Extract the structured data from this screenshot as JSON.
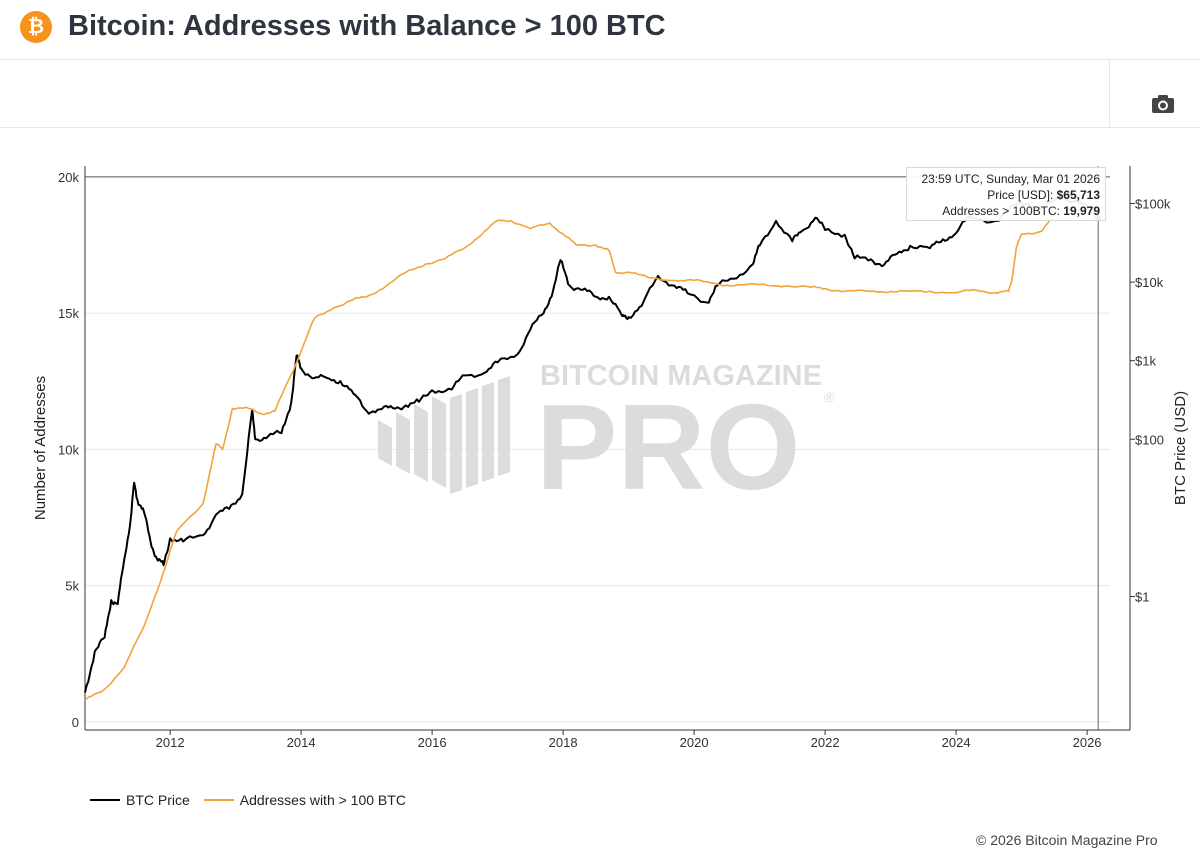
{
  "header": {
    "title": "Bitcoin: Addresses with Balance > 100 BTC",
    "logo_glyph": "₿",
    "logo_color": "#f7931a"
  },
  "toolbar": {
    "camera_icon": "camera-icon"
  },
  "watermark": {
    "line1": "BITCOIN MAGAZINE",
    "line2": "PRO",
    "registered": "®"
  },
  "tooltip": {
    "timestamp": "23:59 UTC, Sunday, Mar 01 2026",
    "price_label": "Price [USD]:",
    "price_value": "$65,713",
    "addresses_label": "Addresses > 100BTC:",
    "addresses_value": "19,979"
  },
  "legend": {
    "btc_price": "BTC Price",
    "addresses": "Addresses with > 100 BTC"
  },
  "footer": {
    "copyright": "© 2026 Bitcoin Magazine Pro"
  },
  "colors": {
    "btc_price": "#000000",
    "addresses": "#f2a33a",
    "grid": "#e6e6e6",
    "axis": "#333333",
    "watermark": "#d9d9d9"
  },
  "chart_data": {
    "type": "line",
    "title": "Bitcoin: Addresses with Balance > 100 BTC",
    "xlabel": "",
    "ylabel": "Number of Addresses",
    "y2label": "BTC Price (USD)",
    "xlim": [
      2010.7,
      2026.35
    ],
    "ylim": [
      -300,
      20400
    ],
    "y2_scale": "log",
    "y2lim": [
      0.02,
      300000
    ],
    "x_ticks": [
      2012,
      2014,
      2016,
      2018,
      2020,
      2022,
      2024,
      2026
    ],
    "x_tick_labels": [
      "2012",
      "2014",
      "2016",
      "2018",
      "2020",
      "2022",
      "2024",
      "2026"
    ],
    "y_ticks": [
      0,
      5000,
      10000,
      15000,
      20000
    ],
    "y_tick_labels": [
      "0",
      "5k",
      "10k",
      "15k",
      "20k"
    ],
    "y2_ticks": [
      1,
      100,
      1000,
      10000,
      100000
    ],
    "y2_tick_labels": [
      "$1",
      "$100",
      "$1k",
      "$10k",
      "$100k"
    ],
    "hover_x": 2026.17,
    "legend_position": "bottom-left",
    "series": [
      {
        "name": "BTC Price",
        "axis": "y2",
        "points": [
          [
            2010.7,
            0.06
          ],
          [
            2010.85,
            0.2
          ],
          [
            2011.0,
            0.3
          ],
          [
            2011.1,
            0.9
          ],
          [
            2011.2,
            0.8
          ],
          [
            2011.3,
            3
          ],
          [
            2011.4,
            10
          ],
          [
            2011.45,
            28
          ],
          [
            2011.5,
            17
          ],
          [
            2011.6,
            12
          ],
          [
            2011.7,
            5
          ],
          [
            2011.8,
            3
          ],
          [
            2011.9,
            2.5
          ],
          [
            2012.0,
            5.5
          ],
          [
            2012.2,
            5
          ],
          [
            2012.5,
            6
          ],
          [
            2012.7,
            11
          ],
          [
            2012.9,
            13
          ],
          [
            2013.1,
            20
          ],
          [
            2013.25,
            230
          ],
          [
            2013.3,
            100
          ],
          [
            2013.5,
            110
          ],
          [
            2013.7,
            120
          ],
          [
            2013.85,
            300
          ],
          [
            2013.93,
            1150
          ],
          [
            2014.0,
            800
          ],
          [
            2014.2,
            600
          ],
          [
            2014.4,
            600
          ],
          [
            2014.6,
            550
          ],
          [
            2014.8,
            380
          ],
          [
            2015.0,
            230
          ],
          [
            2015.2,
            240
          ],
          [
            2015.4,
            250
          ],
          [
            2015.6,
            270
          ],
          [
            2015.8,
            300
          ],
          [
            2016.0,
            420
          ],
          [
            2016.3,
            430
          ],
          [
            2016.5,
            650
          ],
          [
            2016.8,
            700
          ],
          [
            2017.0,
            950
          ],
          [
            2017.3,
            1200
          ],
          [
            2017.5,
            2500
          ],
          [
            2017.7,
            4000
          ],
          [
            2017.85,
            8000
          ],
          [
            2017.96,
            19000
          ],
          [
            2018.1,
            9000
          ],
          [
            2018.3,
            8000
          ],
          [
            2018.5,
            6500
          ],
          [
            2018.7,
            6500
          ],
          [
            2018.9,
            3700
          ],
          [
            2019.0,
            3600
          ],
          [
            2019.2,
            5000
          ],
          [
            2019.45,
            12000
          ],
          [
            2019.7,
            9000
          ],
          [
            2019.9,
            7200
          ],
          [
            2020.2,
            5500
          ],
          [
            2020.35,
            9000
          ],
          [
            2020.6,
            11000
          ],
          [
            2020.9,
            17000
          ],
          [
            2021.0,
            29000
          ],
          [
            2021.25,
            60000
          ],
          [
            2021.5,
            33000
          ],
          [
            2021.65,
            45000
          ],
          [
            2021.85,
            66000
          ],
          [
            2022.0,
            46000
          ],
          [
            2022.3,
            40000
          ],
          [
            2022.45,
            20000
          ],
          [
            2022.7,
            19500
          ],
          [
            2022.9,
            16500
          ],
          [
            2023.1,
            23000
          ],
          [
            2023.3,
            29000
          ],
          [
            2023.6,
            27000
          ],
          [
            2023.8,
            35000
          ],
          [
            2024.0,
            42000
          ],
          [
            2024.2,
            68000
          ],
          [
            2024.6,
            60000
          ],
          [
            2024.9,
            95000
          ],
          [
            2025.1,
            100000
          ],
          [
            2025.3,
            85000
          ],
          [
            2025.6,
            115000
          ],
          [
            2025.85,
            110000
          ],
          [
            2026.0,
            88000
          ],
          [
            2026.17,
            65713
          ]
        ]
      },
      {
        "name": "Addresses with > 100 BTC",
        "axis": "y",
        "points": [
          [
            2010.7,
            800
          ],
          [
            2011.0,
            1200
          ],
          [
            2011.3,
            2000
          ],
          [
            2011.6,
            3500
          ],
          [
            2011.9,
            5500
          ],
          [
            2012.1,
            7000
          ],
          [
            2012.5,
            8000
          ],
          [
            2012.7,
            10200
          ],
          [
            2012.8,
            10000
          ],
          [
            2012.95,
            11500
          ],
          [
            2013.2,
            11500
          ],
          [
            2013.4,
            11300
          ],
          [
            2013.6,
            11400
          ],
          [
            2013.8,
            12500
          ],
          [
            2013.95,
            13300
          ],
          [
            2014.2,
            14800
          ],
          [
            2014.5,
            15200
          ],
          [
            2014.8,
            15500
          ],
          [
            2015.0,
            15600
          ],
          [
            2015.3,
            16000
          ],
          [
            2015.6,
            16500
          ],
          [
            2015.9,
            16800
          ],
          [
            2016.2,
            17000
          ],
          [
            2016.5,
            17400
          ],
          [
            2016.8,
            18000
          ],
          [
            2017.0,
            18400
          ],
          [
            2017.2,
            18400
          ],
          [
            2017.5,
            18100
          ],
          [
            2017.8,
            18300
          ],
          [
            2018.0,
            17900
          ],
          [
            2018.2,
            17500
          ],
          [
            2018.5,
            17500
          ],
          [
            2018.7,
            17300
          ],
          [
            2018.8,
            16500
          ],
          [
            2019.0,
            16500
          ],
          [
            2019.3,
            16300
          ],
          [
            2019.7,
            16200
          ],
          [
            2020.0,
            16200
          ],
          [
            2020.3,
            16100
          ],
          [
            2020.6,
            16000
          ],
          [
            2021.0,
            16050
          ],
          [
            2021.4,
            16000
          ],
          [
            2021.8,
            15950
          ],
          [
            2022.0,
            15900
          ],
          [
            2022.3,
            15800
          ],
          [
            2022.7,
            15800
          ],
          [
            2023.0,
            15800
          ],
          [
            2023.3,
            15800
          ],
          [
            2023.6,
            15800
          ],
          [
            2024.0,
            15750
          ],
          [
            2024.3,
            15850
          ],
          [
            2024.6,
            15750
          ],
          [
            2024.8,
            15800
          ],
          [
            2024.85,
            16200
          ],
          [
            2024.92,
            17400
          ],
          [
            2025.0,
            17900
          ],
          [
            2025.3,
            18000
          ],
          [
            2025.5,
            18600
          ],
          [
            2025.65,
            19200
          ],
          [
            2025.8,
            19800
          ],
          [
            2026.0,
            20200
          ],
          [
            2026.17,
            19979
          ]
        ]
      }
    ]
  }
}
